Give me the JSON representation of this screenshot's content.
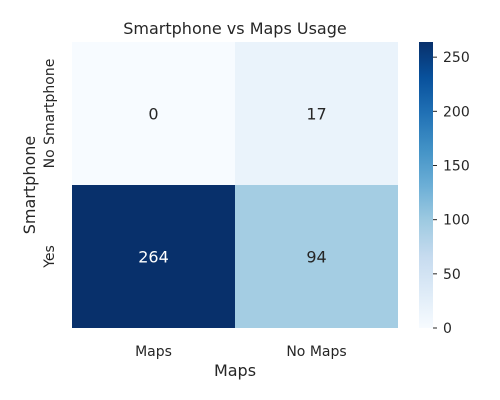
{
  "chart_data": {
    "type": "heatmap",
    "title": "Smartphone vs Maps Usage",
    "xlabel": "Maps",
    "ylabel": "Smartphone",
    "x_categories": [
      "Maps",
      "No Maps"
    ],
    "y_categories": [
      "No Smartphone",
      "Yes"
    ],
    "values": [
      [
        0,
        17
      ],
      [
        264,
        94
      ]
    ],
    "annotations": [
      [
        "0",
        "17"
      ],
      [
        "264",
        "94"
      ]
    ],
    "colormap": "Blues",
    "colorbar": {
      "min": 0,
      "max": 264,
      "ticks": [
        0,
        50,
        100,
        150,
        200,
        250
      ]
    },
    "colors": {
      "low": "#f7fbff",
      "high": "#08306b",
      "text_dark": "#262626",
      "text_light": "#ffffff"
    }
  }
}
